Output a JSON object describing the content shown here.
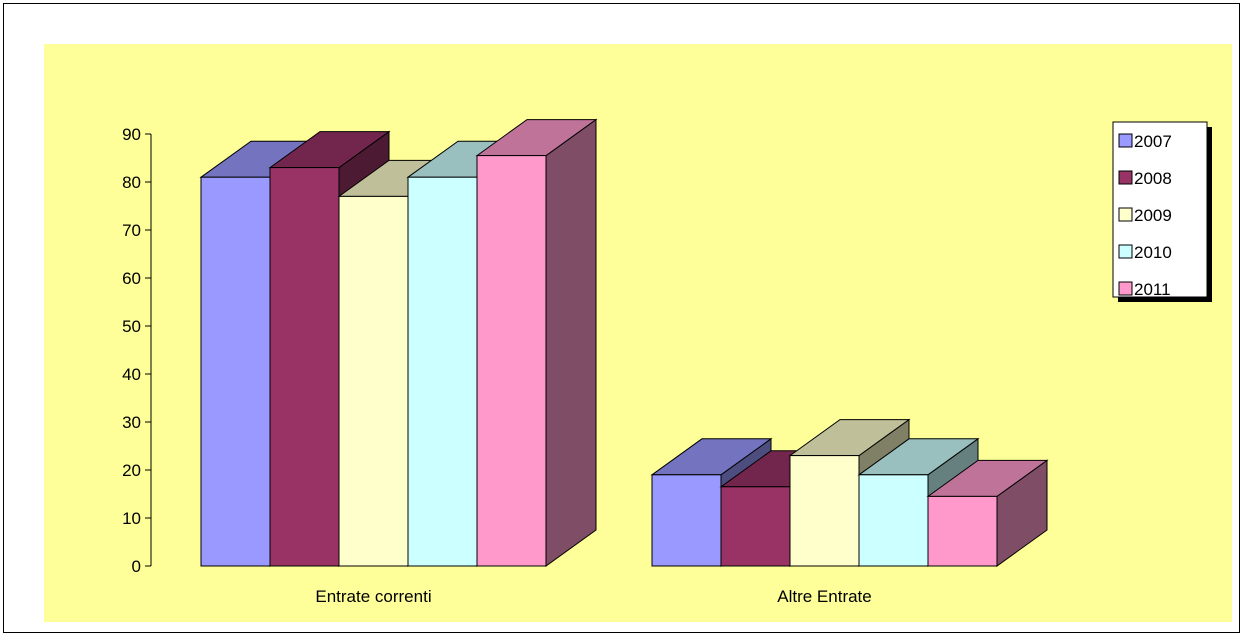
{
  "chart_data": {
    "type": "bar",
    "categories": [
      "Entrate correnti",
      "Altre Entrate"
    ],
    "series": [
      {
        "name": "2007",
        "color": "#9999FF",
        "values": [
          81,
          19
        ]
      },
      {
        "name": "2008",
        "color": "#993366",
        "values": [
          83,
          16.5
        ]
      },
      {
        "name": "2009",
        "color": "#FFFFCC",
        "values": [
          77,
          23
        ]
      },
      {
        "name": "2010",
        "color": "#CCFFFF",
        "values": [
          81,
          19
        ]
      },
      {
        "name": "2011",
        "color": "#FF99CC",
        "values": [
          85.5,
          14.5
        ]
      }
    ],
    "yticks": [
      0,
      10,
      20,
      30,
      40,
      50,
      60,
      70,
      80,
      90
    ],
    "ylim": [
      0,
      90
    ],
    "grid": false,
    "legend": "right",
    "plot_background": "#FFFF99",
    "three_d": true
  }
}
